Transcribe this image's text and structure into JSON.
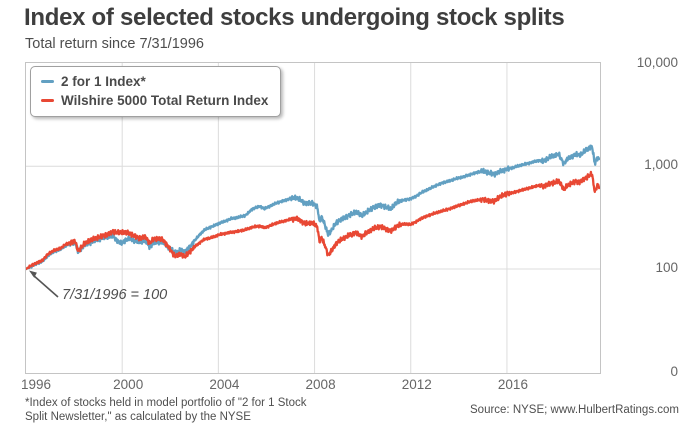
{
  "chart_data": {
    "type": "line",
    "title": "Index of selected stocks undergoing stock splits",
    "subtitle": "Total return since 7/31/1996",
    "y_scale": "log",
    "grid": true,
    "legend_position": "top-left",
    "x_range": [
      1996.58,
      2020.45
    ],
    "annotation": {
      "text": "7/31/1996 = 100"
    },
    "y_ticks": [
      {
        "label": "10,000",
        "value": 10000
      },
      {
        "label": "1,000",
        "value": 1000
      },
      {
        "label": "100",
        "value": 100
      },
      {
        "label": "0",
        "value": null
      }
    ],
    "x_ticks": [
      {
        "label": "1996",
        "t": 1996.58
      },
      {
        "label": "2000",
        "t": 2000.58
      },
      {
        "label": "2004",
        "t": 2004.58
      },
      {
        "label": "2008",
        "t": 2008.58
      },
      {
        "label": "2012",
        "t": 2012.58
      },
      {
        "label": "2016",
        "t": 2016.58
      }
    ],
    "series": [
      {
        "name": "2 for 1 Index*",
        "color": "#62a0c2",
        "points": [
          [
            1996.58,
            100
          ],
          [
            1996.8,
            106
          ],
          [
            1997.0,
            112
          ],
          [
            1997.25,
            118
          ],
          [
            1997.5,
            135
          ],
          [
            1997.75,
            148
          ],
          [
            1998.0,
            155
          ],
          [
            1998.25,
            170
          ],
          [
            1998.5,
            178
          ],
          [
            1998.62,
            182
          ],
          [
            1998.75,
            146
          ],
          [
            1998.9,
            160
          ],
          [
            1999.0,
            170
          ],
          [
            1999.25,
            182
          ],
          [
            1999.5,
            192
          ],
          [
            1999.75,
            200
          ],
          [
            2000.0,
            205
          ],
          [
            2000.2,
            210
          ],
          [
            2000.4,
            185
          ],
          [
            2000.55,
            178
          ],
          [
            2000.7,
            192
          ],
          [
            2000.9,
            198
          ],
          [
            2001.1,
            188
          ],
          [
            2001.3,
            182
          ],
          [
            2001.55,
            188
          ],
          [
            2001.72,
            164
          ],
          [
            2001.9,
            180
          ],
          [
            2002.1,
            185
          ],
          [
            2002.3,
            180
          ],
          [
            2002.5,
            162
          ],
          [
            2002.7,
            148
          ],
          [
            2002.85,
            145
          ],
          [
            2003.0,
            153
          ],
          [
            2003.2,
            148
          ],
          [
            2003.4,
            165
          ],
          [
            2003.6,
            190
          ],
          [
            2003.8,
            215
          ],
          [
            2004.0,
            240
          ],
          [
            2004.3,
            258
          ],
          [
            2004.6,
            278
          ],
          [
            2004.9,
            295
          ],
          [
            2005.1,
            308
          ],
          [
            2005.4,
            318
          ],
          [
            2005.7,
            332
          ],
          [
            2006.0,
            385
          ],
          [
            2006.3,
            408
          ],
          [
            2006.5,
            385
          ],
          [
            2007.0,
            440
          ],
          [
            2007.4,
            470
          ],
          [
            2007.6,
            488
          ],
          [
            2007.8,
            495
          ],
          [
            2008.0,
            465
          ],
          [
            2008.2,
            432
          ],
          [
            2008.5,
            442
          ],
          [
            2008.7,
            400
          ],
          [
            2008.78,
            292
          ],
          [
            2008.87,
            322
          ],
          [
            2009.0,
            272
          ],
          [
            2009.15,
            215
          ],
          [
            2009.3,
            242
          ],
          [
            2009.5,
            285
          ],
          [
            2009.75,
            310
          ],
          [
            2010.0,
            332
          ],
          [
            2010.3,
            360
          ],
          [
            2010.55,
            330
          ],
          [
            2010.8,
            365
          ],
          [
            2011.0,
            395
          ],
          [
            2011.3,
            420
          ],
          [
            2011.55,
            400
          ],
          [
            2011.75,
            385
          ],
          [
            2011.9,
            420
          ],
          [
            2012.0,
            445
          ],
          [
            2012.3,
            470
          ],
          [
            2012.55,
            480
          ],
          [
            2012.8,
            510
          ],
          [
            2013.0,
            550
          ],
          [
            2013.3,
            595
          ],
          [
            2013.6,
            645
          ],
          [
            2013.9,
            690
          ],
          [
            2014.2,
            722
          ],
          [
            2014.5,
            760
          ],
          [
            2014.8,
            792
          ],
          [
            2015.1,
            840
          ],
          [
            2015.4,
            880
          ],
          [
            2015.6,
            900
          ],
          [
            2015.8,
            860
          ],
          [
            2016.05,
            832
          ],
          [
            2016.3,
            895
          ],
          [
            2016.6,
            945
          ],
          [
            2016.8,
            962
          ],
          [
            2017.0,
            1000
          ],
          [
            2017.3,
            1042
          ],
          [
            2017.6,
            1090
          ],
          [
            2017.9,
            1140
          ],
          [
            2018.1,
            1118
          ],
          [
            2018.35,
            1220
          ],
          [
            2018.6,
            1280
          ],
          [
            2018.73,
            1310
          ],
          [
            2018.85,
            1160
          ],
          [
            2018.95,
            1060
          ],
          [
            2019.1,
            1180
          ],
          [
            2019.3,
            1262
          ],
          [
            2019.45,
            1300
          ],
          [
            2019.6,
            1280
          ],
          [
            2019.75,
            1360
          ],
          [
            2019.95,
            1480
          ],
          [
            2020.12,
            1560
          ],
          [
            2020.2,
            1180
          ],
          [
            2020.25,
            1060
          ],
          [
            2020.33,
            1220
          ],
          [
            2020.42,
            1170
          ]
        ]
      },
      {
        "name": "Wilshire 5000 Total Return Index",
        "color": "#e84834",
        "points": [
          [
            1996.58,
            100
          ],
          [
            1996.8,
            108
          ],
          [
            1997.0,
            114
          ],
          [
            1997.25,
            121
          ],
          [
            1997.5,
            140
          ],
          [
            1997.75,
            152
          ],
          [
            1998.0,
            158
          ],
          [
            1998.25,
            175
          ],
          [
            1998.5,
            183
          ],
          [
            1998.62,
            187
          ],
          [
            1998.75,
            150
          ],
          [
            1998.9,
            165
          ],
          [
            1999.0,
            175
          ],
          [
            1999.25,
            190
          ],
          [
            1999.5,
            200
          ],
          [
            1999.75,
            210
          ],
          [
            2000.0,
            218
          ],
          [
            2000.2,
            232
          ],
          [
            2000.4,
            224
          ],
          [
            2000.6,
            228
          ],
          [
            2000.9,
            222
          ],
          [
            2001.1,
            210
          ],
          [
            2001.3,
            200
          ],
          [
            2001.55,
            205
          ],
          [
            2001.72,
            178
          ],
          [
            2001.9,
            195
          ],
          [
            2002.1,
            198
          ],
          [
            2002.3,
            190
          ],
          [
            2002.5,
            165
          ],
          [
            2002.7,
            140
          ],
          [
            2002.85,
            133
          ],
          [
            2003.0,
            140
          ],
          [
            2003.2,
            131
          ],
          [
            2003.4,
            148
          ],
          [
            2003.6,
            165
          ],
          [
            2003.8,
            180
          ],
          [
            2004.0,
            195
          ],
          [
            2004.3,
            202
          ],
          [
            2004.6,
            215
          ],
          [
            2004.9,
            223
          ],
          [
            2005.1,
            228
          ],
          [
            2005.4,
            233
          ],
          [
            2005.7,
            241
          ],
          [
            2006.0,
            255
          ],
          [
            2006.3,
            263
          ],
          [
            2006.5,
            252
          ],
          [
            2007.0,
            280
          ],
          [
            2007.4,
            296
          ],
          [
            2007.6,
            306
          ],
          [
            2007.8,
            312
          ],
          [
            2008.0,
            295
          ],
          [
            2008.2,
            275
          ],
          [
            2008.5,
            281
          ],
          [
            2008.7,
            255
          ],
          [
            2008.78,
            186
          ],
          [
            2008.87,
            202
          ],
          [
            2009.0,
            172
          ],
          [
            2009.15,
            136
          ],
          [
            2009.3,
            152
          ],
          [
            2009.5,
            180
          ],
          [
            2009.75,
            196
          ],
          [
            2010.0,
            212
          ],
          [
            2010.3,
            226
          ],
          [
            2010.55,
            208
          ],
          [
            2010.8,
            229
          ],
          [
            2011.0,
            245
          ],
          [
            2011.3,
            258
          ],
          [
            2011.55,
            246
          ],
          [
            2011.75,
            233
          ],
          [
            2011.9,
            252
          ],
          [
            2012.0,
            262
          ],
          [
            2012.3,
            275
          ],
          [
            2012.55,
            270
          ],
          [
            2012.8,
            288
          ],
          [
            2013.0,
            310
          ],
          [
            2013.3,
            331
          ],
          [
            2013.6,
            350
          ],
          [
            2013.9,
            368
          ],
          [
            2014.2,
            386
          ],
          [
            2014.5,
            410
          ],
          [
            2014.8,
            432
          ],
          [
            2015.1,
            456
          ],
          [
            2015.4,
            470
          ],
          [
            2015.6,
            480
          ],
          [
            2015.8,
            462
          ],
          [
            2016.05,
            456
          ],
          [
            2016.3,
            506
          ],
          [
            2016.6,
            540
          ],
          [
            2016.8,
            551
          ],
          [
            2017.0,
            570
          ],
          [
            2017.3,
            596
          ],
          [
            2017.6,
            621
          ],
          [
            2017.9,
            650
          ],
          [
            2018.1,
            636
          ],
          [
            2018.35,
            680
          ],
          [
            2018.6,
            700
          ],
          [
            2018.73,
            721
          ],
          [
            2018.85,
            650
          ],
          [
            2018.95,
            592
          ],
          [
            2019.1,
            650
          ],
          [
            2019.3,
            690
          ],
          [
            2019.45,
            710
          ],
          [
            2019.6,
            700
          ],
          [
            2019.75,
            741
          ],
          [
            2019.95,
            800
          ],
          [
            2020.12,
            842
          ],
          [
            2020.2,
            620
          ],
          [
            2020.25,
            562
          ],
          [
            2020.33,
            652
          ],
          [
            2020.42,
            631
          ]
        ]
      }
    ]
  },
  "footer": {
    "footnote_line1": "*Index of stocks held in model portfolio of \"2 for 1 Stock",
    "footnote_line2": "Split Newsletter,\" as calculated by the NYSE",
    "source": "Source: NYSE; www.HulbertRatings.com"
  }
}
